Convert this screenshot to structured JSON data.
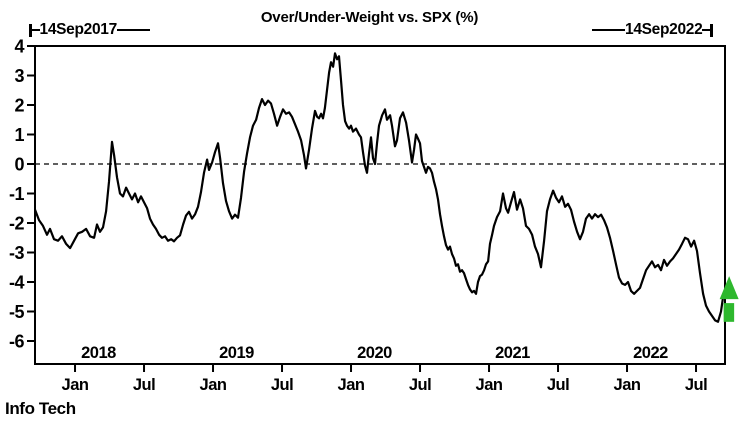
{
  "header": {
    "title": "Over/Under-Weight vs. SPX (%)",
    "left_date_label": "14Sep2017",
    "right_date_label": "14Sep2022"
  },
  "footer": {
    "series_name": "Info Tech"
  },
  "colors": {
    "line": "#000000",
    "frame": "#000000",
    "background": "#ffffff",
    "arrow_green": "#2eb82e"
  },
  "chart_data": {
    "type": "line",
    "title": "Over/Under-Weight vs. SPX (%)",
    "series_label": "Info Tech",
    "x_axis": {
      "start_label": "14Sep2017",
      "end_label": "14Sep2022",
      "start": 2017.71,
      "end": 2022.71,
      "month_ticks": [
        {
          "t": 2018.0,
          "label": "Jan"
        },
        {
          "t": 2018.5,
          "label": "Jul"
        },
        {
          "t": 2019.0,
          "label": "Jan"
        },
        {
          "t": 2019.5,
          "label": "Jul"
        },
        {
          "t": 2020.0,
          "label": "Jan"
        },
        {
          "t": 2020.5,
          "label": "Jul"
        },
        {
          "t": 2021.0,
          "label": "Jan"
        },
        {
          "t": 2021.5,
          "label": "Jul"
        },
        {
          "t": 2022.0,
          "label": "Jan"
        },
        {
          "t": 2022.5,
          "label": "Jul"
        }
      ],
      "year_labels": [
        {
          "t": 2018.17,
          "label": "2018"
        },
        {
          "t": 2019.17,
          "label": "2019"
        },
        {
          "t": 2020.17,
          "label": "2020"
        },
        {
          "t": 2021.17,
          "label": "2021"
        },
        {
          "t": 2022.17,
          "label": "2022"
        }
      ]
    },
    "y_axis": {
      "min": -6,
      "max": 4,
      "ticks": [
        4,
        3,
        2,
        1,
        0,
        -1,
        -2,
        -3,
        -4,
        -5,
        -6
      ],
      "zero_line_dashed": true
    },
    "annotations": [
      {
        "type": "up-arrow",
        "t": 2022.74,
        "v_top": -3.8,
        "v_bottom": -5.35,
        "color": "#2eb82e"
      }
    ],
    "series": [
      {
        "name": "Info Tech over/under-weight vs. SPX (%)",
        "points": [
          [
            2017.71,
            -1.55
          ],
          [
            2017.739,
            -1.9
          ],
          [
            2017.768,
            -2.1
          ],
          [
            2017.797,
            -2.4
          ],
          [
            2017.819,
            -2.2
          ],
          [
            2017.848,
            -2.55
          ],
          [
            2017.877,
            -2.6
          ],
          [
            2017.906,
            -2.45
          ],
          [
            2017.935,
            -2.7
          ],
          [
            2017.964,
            -2.85
          ],
          [
            2017.993,
            -2.6
          ],
          [
            2018.022,
            -2.35
          ],
          [
            2018.051,
            -2.3
          ],
          [
            2018.08,
            -2.2
          ],
          [
            2018.109,
            -2.45
          ],
          [
            2018.138,
            -2.5
          ],
          [
            2018.159,
            -2.05
          ],
          [
            2018.181,
            -2.3
          ],
          [
            2018.203,
            -2.15
          ],
          [
            2018.225,
            -1.6
          ],
          [
            2018.246,
            -0.6
          ],
          [
            2018.268,
            0.75
          ],
          [
            2018.283,
            0.3
          ],
          [
            2018.304,
            -0.45
          ],
          [
            2018.326,
            -1.0
          ],
          [
            2018.348,
            -1.1
          ],
          [
            2018.37,
            -0.8
          ],
          [
            2018.391,
            -1.0
          ],
          [
            2018.413,
            -1.2
          ],
          [
            2018.435,
            -1.0
          ],
          [
            2018.457,
            -1.3
          ],
          [
            2018.478,
            -1.1
          ],
          [
            2018.5,
            -1.3
          ],
          [
            2018.522,
            -1.5
          ],
          [
            2018.543,
            -1.85
          ],
          [
            2018.565,
            -2.05
          ],
          [
            2018.587,
            -2.2
          ],
          [
            2018.609,
            -2.4
          ],
          [
            2018.63,
            -2.5
          ],
          [
            2018.652,
            -2.45
          ],
          [
            2018.674,
            -2.6
          ],
          [
            2018.696,
            -2.55
          ],
          [
            2018.717,
            -2.62
          ],
          [
            2018.739,
            -2.5
          ],
          [
            2018.761,
            -2.42
          ],
          [
            2018.783,
            -2.05
          ],
          [
            2018.804,
            -1.75
          ],
          [
            2018.826,
            -1.62
          ],
          [
            2018.848,
            -1.85
          ],
          [
            2018.87,
            -1.7
          ],
          [
            2018.891,
            -1.45
          ],
          [
            2018.913,
            -0.95
          ],
          [
            2018.935,
            -0.3
          ],
          [
            2018.957,
            0.15
          ],
          [
            2018.971,
            -0.2
          ],
          [
            2018.993,
            0.05
          ],
          [
            2019.014,
            0.4
          ],
          [
            2019.036,
            0.7
          ],
          [
            2019.051,
            0.2
          ],
          [
            2019.072,
            -0.65
          ],
          [
            2019.094,
            -1.25
          ],
          [
            2019.116,
            -1.6
          ],
          [
            2019.138,
            -1.85
          ],
          [
            2019.159,
            -1.72
          ],
          [
            2019.181,
            -1.82
          ],
          [
            2019.203,
            -1.15
          ],
          [
            2019.225,
            -0.25
          ],
          [
            2019.246,
            0.35
          ],
          [
            2019.268,
            0.9
          ],
          [
            2019.29,
            1.3
          ],
          [
            2019.312,
            1.5
          ],
          [
            2019.333,
            1.9
          ],
          [
            2019.355,
            2.2
          ],
          [
            2019.377,
            2.0
          ],
          [
            2019.399,
            2.15
          ],
          [
            2019.42,
            2.05
          ],
          [
            2019.442,
            1.7
          ],
          [
            2019.464,
            1.3
          ],
          [
            2019.486,
            1.6
          ],
          [
            2019.507,
            1.85
          ],
          [
            2019.529,
            1.7
          ],
          [
            2019.551,
            1.75
          ],
          [
            2019.572,
            1.6
          ],
          [
            2019.594,
            1.35
          ],
          [
            2019.616,
            1.1
          ],
          [
            2019.638,
            0.8
          ],
          [
            2019.659,
            0.3
          ],
          [
            2019.674,
            -0.15
          ],
          [
            2019.696,
            0.5
          ],
          [
            2019.717,
            1.2
          ],
          [
            2019.739,
            1.8
          ],
          [
            2019.754,
            1.6
          ],
          [
            2019.768,
            1.55
          ],
          [
            2019.783,
            1.7
          ],
          [
            2019.797,
            1.55
          ],
          [
            2019.811,
            1.9
          ],
          [
            2019.826,
            2.5
          ],
          [
            2019.841,
            3.1
          ],
          [
            2019.855,
            3.45
          ],
          [
            2019.87,
            3.3
          ],
          [
            2019.884,
            3.75
          ],
          [
            2019.899,
            3.55
          ],
          [
            2019.913,
            3.65
          ],
          [
            2019.928,
            2.8
          ],
          [
            2019.942,
            2.0
          ],
          [
            2019.957,
            1.45
          ],
          [
            2019.971,
            1.3
          ],
          [
            2019.986,
            1.2
          ],
          [
            2020.0,
            1.3
          ],
          [
            2020.014,
            1.1
          ],
          [
            2020.036,
            1.2
          ],
          [
            2020.058,
            1.0
          ],
          [
            2020.072,
            0.9
          ],
          [
            2020.087,
            0.4
          ],
          [
            2020.101,
            -0.05
          ],
          [
            2020.116,
            -0.3
          ],
          [
            2020.13,
            0.35
          ],
          [
            2020.145,
            0.9
          ],
          [
            2020.159,
            0.2
          ],
          [
            2020.174,
            0.0
          ],
          [
            2020.188,
            0.7
          ],
          [
            2020.203,
            1.3
          ],
          [
            2020.225,
            1.65
          ],
          [
            2020.246,
            1.85
          ],
          [
            2020.261,
            1.5
          ],
          [
            2020.283,
            1.65
          ],
          [
            2020.297,
            1.3
          ],
          [
            2020.319,
            0.6
          ],
          [
            2020.333,
            0.8
          ],
          [
            2020.355,
            1.55
          ],
          [
            2020.377,
            1.75
          ],
          [
            2020.399,
            1.4
          ],
          [
            2020.42,
            0.8
          ],
          [
            2020.442,
            0.05
          ],
          [
            2020.457,
            0.5
          ],
          [
            2020.471,
            1.0
          ],
          [
            2020.486,
            0.85
          ],
          [
            2020.5,
            0.7
          ],
          [
            2020.514,
            0.1
          ],
          [
            2020.529,
            -0.1
          ],
          [
            2020.543,
            -0.3
          ],
          [
            2020.558,
            -0.1
          ],
          [
            2020.572,
            -0.15
          ],
          [
            2020.587,
            -0.3
          ],
          [
            2020.601,
            -0.6
          ],
          [
            2020.616,
            -0.85
          ],
          [
            2020.63,
            -1.2
          ],
          [
            2020.645,
            -1.7
          ],
          [
            2020.659,
            -2.1
          ],
          [
            2020.674,
            -2.45
          ],
          [
            2020.688,
            -2.75
          ],
          [
            2020.703,
            -2.9
          ],
          [
            2020.717,
            -2.8
          ],
          [
            2020.732,
            -3.05
          ],
          [
            2020.746,
            -3.2
          ],
          [
            2020.761,
            -3.45
          ],
          [
            2020.775,
            -3.4
          ],
          [
            2020.79,
            -3.65
          ],
          [
            2020.804,
            -3.6
          ],
          [
            2020.819,
            -3.7
          ],
          [
            2020.833,
            -3.9
          ],
          [
            2020.848,
            -4.1
          ],
          [
            2020.862,
            -4.25
          ],
          [
            2020.877,
            -4.35
          ],
          [
            2020.891,
            -4.3
          ],
          [
            2020.906,
            -4.4
          ],
          [
            2020.92,
            -4.0
          ],
          [
            2020.935,
            -3.8
          ],
          [
            2020.949,
            -3.75
          ],
          [
            2020.964,
            -3.6
          ],
          [
            2020.978,
            -3.4
          ],
          [
            2020.993,
            -3.3
          ],
          [
            2021.007,
            -2.7
          ],
          [
            2021.022,
            -2.4
          ],
          [
            2021.036,
            -2.1
          ],
          [
            2021.058,
            -1.8
          ],
          [
            2021.08,
            -1.6
          ],
          [
            2021.101,
            -1.0
          ],
          [
            2021.123,
            -1.5
          ],
          [
            2021.138,
            -1.65
          ],
          [
            2021.159,
            -1.3
          ],
          [
            2021.181,
            -0.95
          ],
          [
            2021.203,
            -1.55
          ],
          [
            2021.225,
            -1.2
          ],
          [
            2021.246,
            -1.5
          ],
          [
            2021.268,
            -2.1
          ],
          [
            2021.29,
            -2.2
          ],
          [
            2021.312,
            -2.4
          ],
          [
            2021.333,
            -2.8
          ],
          [
            2021.355,
            -3.05
          ],
          [
            2021.377,
            -3.5
          ],
          [
            2021.399,
            -2.6
          ],
          [
            2021.42,
            -1.6
          ],
          [
            2021.442,
            -1.2
          ],
          [
            2021.464,
            -0.9
          ],
          [
            2021.486,
            -1.15
          ],
          [
            2021.507,
            -1.3
          ],
          [
            2021.529,
            -1.1
          ],
          [
            2021.551,
            -1.45
          ],
          [
            2021.572,
            -1.35
          ],
          [
            2021.594,
            -1.55
          ],
          [
            2021.616,
            -1.95
          ],
          [
            2021.638,
            -2.3
          ],
          [
            2021.659,
            -2.55
          ],
          [
            2021.681,
            -2.3
          ],
          [
            2021.703,
            -1.85
          ],
          [
            2021.725,
            -1.7
          ],
          [
            2021.746,
            -1.85
          ],
          [
            2021.768,
            -1.7
          ],
          [
            2021.79,
            -1.8
          ],
          [
            2021.812,
            -1.72
          ],
          [
            2021.833,
            -1.9
          ],
          [
            2021.855,
            -2.15
          ],
          [
            2021.877,
            -2.5
          ],
          [
            2021.899,
            -2.95
          ],
          [
            2021.92,
            -3.4
          ],
          [
            2021.942,
            -3.85
          ],
          [
            2021.964,
            -4.05
          ],
          [
            2021.986,
            -4.1
          ],
          [
            2022.007,
            -4.0
          ],
          [
            2022.029,
            -4.3
          ],
          [
            2022.051,
            -4.4
          ],
          [
            2022.072,
            -4.3
          ],
          [
            2022.094,
            -4.2
          ],
          [
            2022.116,
            -3.9
          ],
          [
            2022.138,
            -3.6
          ],
          [
            2022.159,
            -3.45
          ],
          [
            2022.181,
            -3.3
          ],
          [
            2022.203,
            -3.5
          ],
          [
            2022.225,
            -3.42
          ],
          [
            2022.246,
            -3.6
          ],
          [
            2022.268,
            -3.25
          ],
          [
            2022.29,
            -3.45
          ],
          [
            2022.312,
            -3.3
          ],
          [
            2022.333,
            -3.2
          ],
          [
            2022.355,
            -3.05
          ],
          [
            2022.377,
            -2.9
          ],
          [
            2022.399,
            -2.7
          ],
          [
            2022.42,
            -2.5
          ],
          [
            2022.442,
            -2.55
          ],
          [
            2022.464,
            -2.8
          ],
          [
            2022.486,
            -2.6
          ],
          [
            2022.507,
            -2.95
          ],
          [
            2022.529,
            -3.7
          ],
          [
            2022.551,
            -4.4
          ],
          [
            2022.572,
            -4.8
          ],
          [
            2022.594,
            -5.0
          ],
          [
            2022.616,
            -5.15
          ],
          [
            2022.638,
            -5.3
          ],
          [
            2022.659,
            -5.35
          ],
          [
            2022.681,
            -5.0
          ],
          [
            2022.696,
            -4.5
          ],
          [
            2022.71,
            -4.3
          ]
        ]
      }
    ]
  }
}
